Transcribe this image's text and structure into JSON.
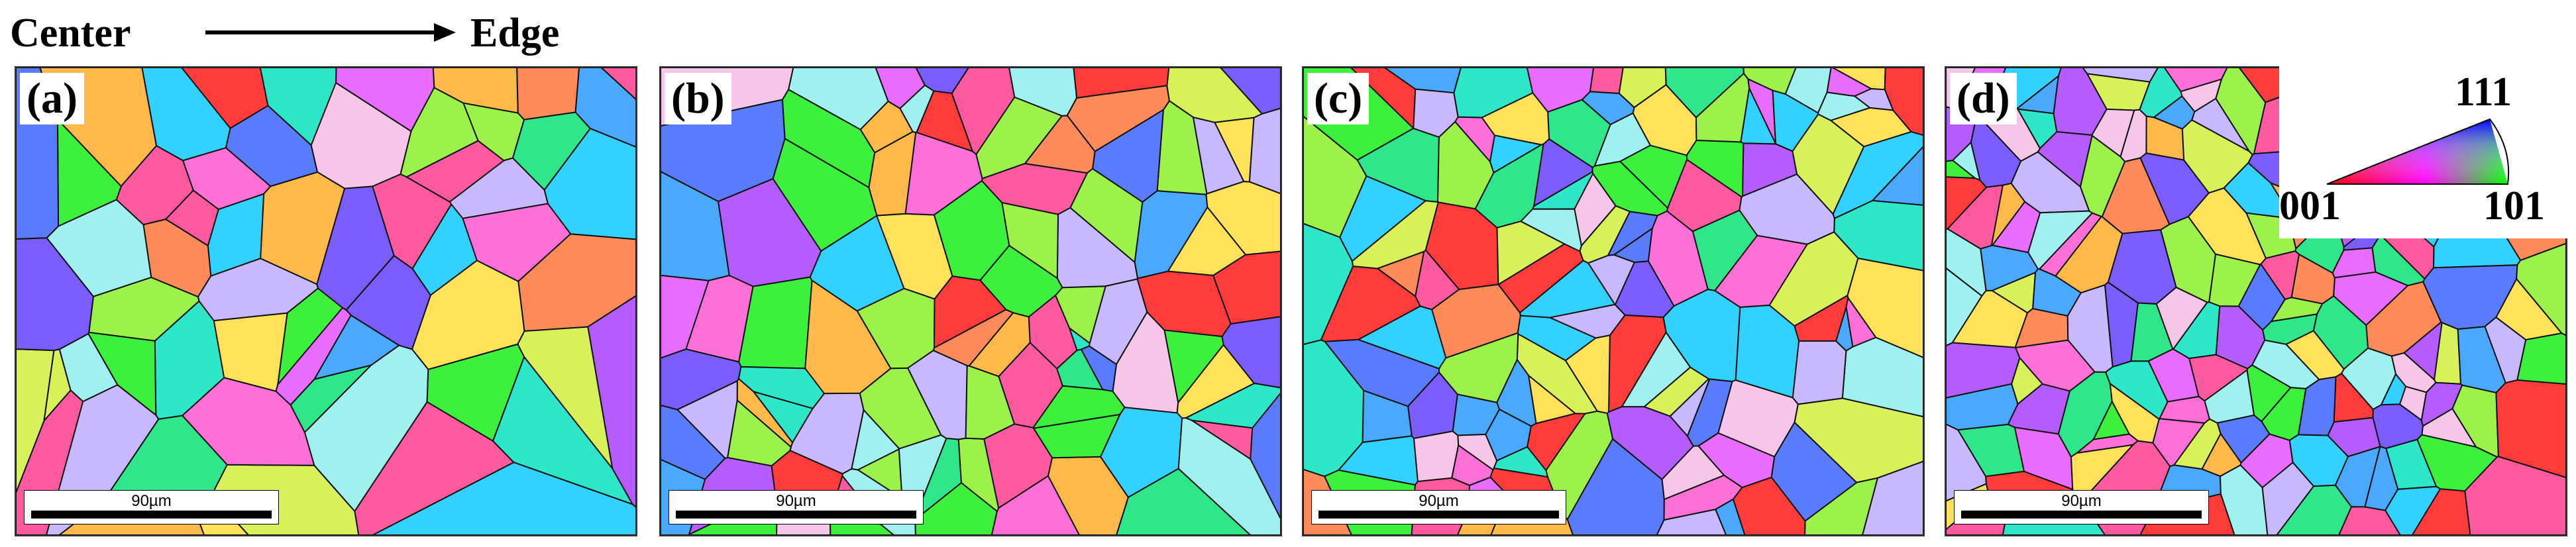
{
  "header": {
    "left_label": "Center",
    "right_label": "Edge",
    "arrow_icon": "right-arrow-icon"
  },
  "panels": [
    {
      "label": "(a)",
      "scale": "90µm"
    },
    {
      "label": "(b)",
      "scale": "90µm"
    },
    {
      "label": "(c)",
      "scale": "90µm"
    },
    {
      "label": "(d)",
      "scale": "90µm"
    }
  ],
  "legend": {
    "corner_001": "001",
    "corner_101": "101",
    "corner_111": "111",
    "colors": {
      "001": "#ff0000",
      "101": "#00ff00",
      "111": "#0000ff"
    }
  }
}
